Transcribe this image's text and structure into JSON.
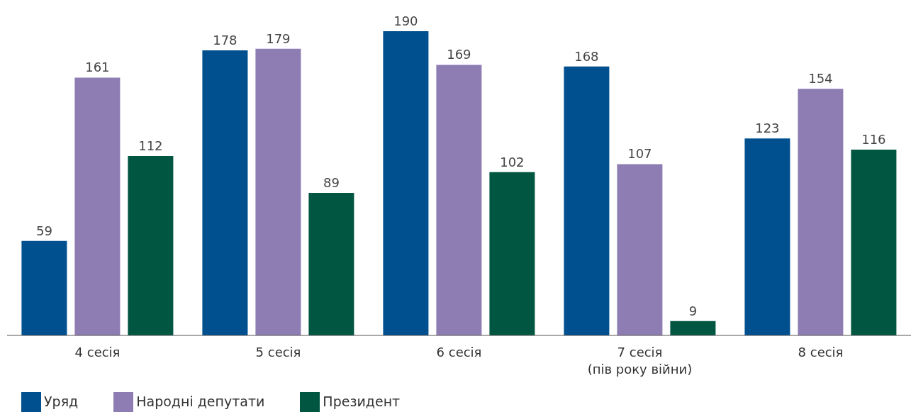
{
  "chart_data": {
    "type": "bar",
    "categories": [
      "4 сесія",
      "5 сесія",
      "6 сесія",
      "7 сесія\n(пів року війни)",
      "8 сесія"
    ],
    "series": [
      {
        "name": "Уряд",
        "color": "#00508f",
        "values": [
          59,
          178,
          190,
          168,
          123
        ]
      },
      {
        "name": "Народні депутати",
        "color": "#8e7db3",
        "values": [
          161,
          179,
          169,
          107,
          154
        ]
      },
      {
        "name": "Президент",
        "color": "#005640",
        "values": [
          112,
          89,
          102,
          9,
          116
        ]
      }
    ],
    "data_labels": true,
    "legend": "bottom left",
    "grid": false
  }
}
